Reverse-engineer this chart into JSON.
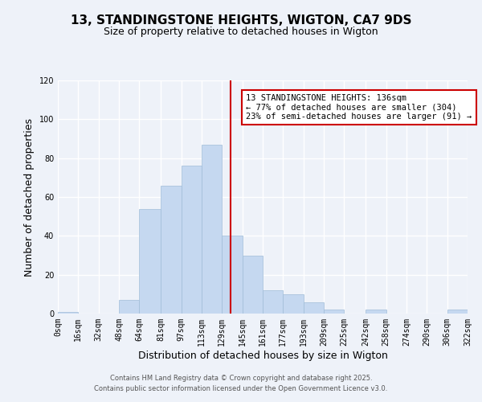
{
  "title": "13, STANDINGSTONE HEIGHTS, WIGTON, CA7 9DS",
  "subtitle": "Size of property relative to detached houses in Wigton",
  "xlabel": "Distribution of detached houses by size in Wigton",
  "ylabel": "Number of detached properties",
  "bin_labels": [
    "0sqm",
    "16sqm",
    "32sqm",
    "48sqm",
    "64sqm",
    "81sqm",
    "97sqm",
    "113sqm",
    "129sqm",
    "145sqm",
    "161sqm",
    "177sqm",
    "193sqm",
    "209sqm",
    "225sqm",
    "242sqm",
    "258sqm",
    "274sqm",
    "290sqm",
    "306sqm",
    "322sqm"
  ],
  "bin_edges": [
    0,
    16,
    32,
    48,
    64,
    81,
    97,
    113,
    129,
    145,
    161,
    177,
    193,
    209,
    225,
    242,
    258,
    274,
    290,
    306,
    322
  ],
  "bar_heights": [
    1,
    0,
    0,
    7,
    54,
    66,
    76,
    87,
    40,
    30,
    12,
    10,
    6,
    2,
    0,
    2,
    0,
    0,
    0,
    2
  ],
  "bar_color": "#c5d8f0",
  "bar_edge_color": "#a0bcd8",
  "vline_x": 136,
  "vline_color": "#cc0000",
  "ylim": [
    0,
    120
  ],
  "yticks": [
    0,
    20,
    40,
    60,
    80,
    100,
    120
  ],
  "annotation_text": "13 STANDINGSTONE HEIGHTS: 136sqm\n← 77% of detached houses are smaller (304)\n23% of semi-detached houses are larger (91) →",
  "annotation_box_color": "#ffffff",
  "annotation_box_edge_color": "#cc0000",
  "footer_line1": "Contains HM Land Registry data © Crown copyright and database right 2025.",
  "footer_line2": "Contains public sector information licensed under the Open Government Licence v3.0.",
  "background_color": "#eef2f9",
  "grid_color": "#ffffff",
  "title_fontsize": 11,
  "subtitle_fontsize": 9,
  "axis_label_fontsize": 9,
  "tick_fontsize": 7,
  "annotation_fontsize": 7.5,
  "footer_fontsize": 6
}
